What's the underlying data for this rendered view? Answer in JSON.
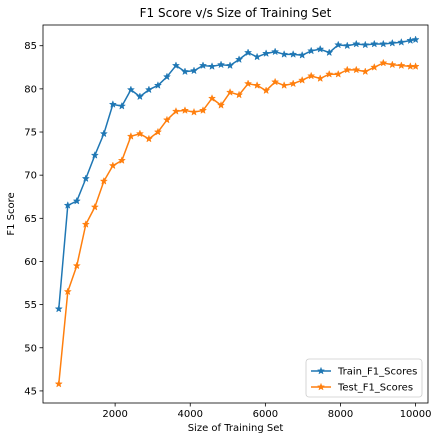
{
  "chart_data": {
    "type": "line",
    "title": "F1 Score v/s Size of Training Set",
    "xlabel": "Size of Training Set",
    "ylabel": "F1 Score",
    "xlim": [
      80,
      10330
    ],
    "ylim": [
      43.6,
      87.4
    ],
    "xticks": [
      2000,
      4000,
      6000,
      8000,
      10000
    ],
    "yticks": [
      45,
      50,
      55,
      60,
      65,
      70,
      75,
      80,
      85
    ],
    "grid": false,
    "legend_position": "lower-right",
    "x": [
      500,
      740,
      980,
      1220,
      1460,
      1700,
      1940,
      2180,
      2420,
      2660,
      2900,
      3140,
      3380,
      3620,
      3860,
      4100,
      4340,
      4580,
      4820,
      5060,
      5300,
      5540,
      5780,
      6020,
      6260,
      6500,
      6740,
      6980,
      7220,
      7460,
      7700,
      7940,
      8180,
      8420,
      8660,
      8900,
      9140,
      9380,
      9620,
      9860,
      10000
    ],
    "series": [
      {
        "name": "Train_F1_Scores",
        "color": "#1f77b4",
        "marker": "star",
        "values": [
          54.5,
          66.5,
          67.0,
          69.6,
          72.3,
          74.8,
          78.2,
          78.0,
          79.9,
          79.1,
          79.9,
          80.4,
          81.4,
          82.7,
          82.0,
          82.1,
          82.7,
          82.6,
          82.8,
          82.7,
          83.4,
          84.2,
          83.7,
          84.1,
          84.3,
          84.0,
          84.0,
          83.9,
          84.4,
          84.6,
          84.2,
          85.1,
          85.0,
          85.2,
          85.1,
          85.2,
          85.2,
          85.3,
          85.4,
          85.6,
          85.7
        ]
      },
      {
        "name": "Test_F1_Scores",
        "color": "#ff7f0e",
        "marker": "star",
        "values": [
          45.8,
          56.5,
          59.5,
          64.3,
          66.3,
          69.3,
          71.1,
          71.7,
          74.5,
          74.8,
          74.2,
          75.0,
          76.4,
          77.4,
          77.5,
          77.3,
          77.5,
          78.9,
          78.1,
          79.6,
          79.3,
          80.6,
          80.4,
          79.8,
          80.8,
          80.4,
          80.6,
          81.0,
          81.5,
          81.2,
          81.7,
          81.7,
          82.2,
          82.2,
          82.0,
          82.5,
          83.0,
          82.8,
          82.7,
          82.6,
          82.6
        ]
      }
    ]
  }
}
